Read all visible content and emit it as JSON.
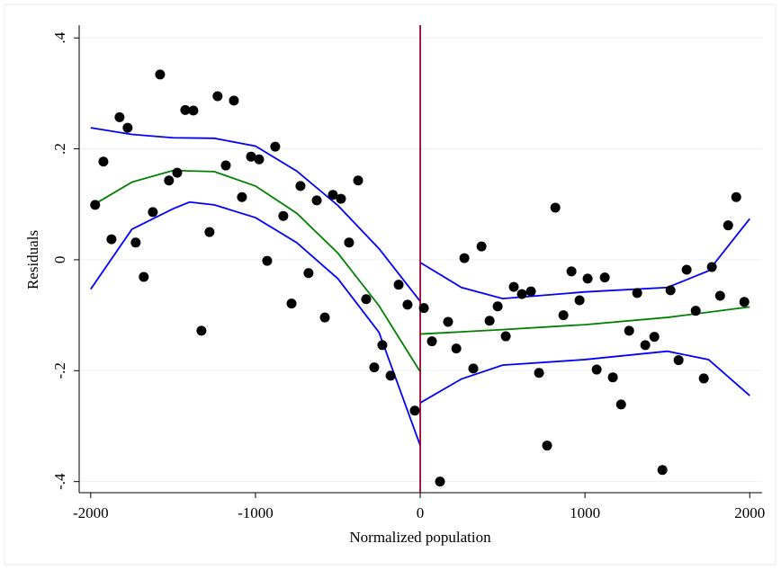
{
  "chart_data": {
    "type": "scatter",
    "xlabel": "Normalized population",
    "ylabel": "Residuals",
    "xlim": [
      -2070,
      2075
    ],
    "ylim": [
      -0.42,
      0.423
    ],
    "xticks": [
      -2000,
      -1000,
      0,
      1000,
      2000
    ],
    "yticks": [
      {
        "value": 0.4,
        "label": ".4"
      },
      {
        "value": 0.2,
        "label": ".2"
      },
      0,
      {
        "value": -0.2,
        "label": "-.2"
      },
      {
        "value": -0.4,
        "label": "-.4"
      }
    ],
    "grid": true,
    "vline": {
      "value": 0,
      "color": "#990033"
    },
    "series": [
      {
        "type": "scatter",
        "color": "#000000",
        "x": [
          -1973,
          -1923,
          -1874,
          -1825,
          -1776,
          -1727,
          -1678,
          -1623,
          -1579,
          -1525,
          -1475,
          -1426,
          -1377,
          -1328,
          -1279,
          -1230,
          -1180,
          -1131,
          -1082,
          -1027,
          -978,
          -929,
          -880,
          -831,
          -781,
          -727,
          -678,
          -628,
          -579,
          -530,
          -481,
          -432,
          -377,
          -328,
          -279,
          -230,
          -180,
          -131,
          -77,
          -33,
          22,
          71,
          120,
          169,
          219,
          268,
          322,
          372,
          421,
          470,
          519,
          568,
          617,
          672,
          721,
          770,
          820,
          869,
          918,
          967,
          1016,
          1071,
          1120,
          1169,
          1219,
          1268,
          1317,
          1366,
          1421,
          1470,
          1519,
          1568,
          1617,
          1672,
          1721,
          1770,
          1820,
          1869,
          1918,
          1967
        ],
        "values": [
          0.099,
          0.177,
          0.037,
          0.257,
          0.238,
          0.031,
          -0.031,
          0.086,
          0.334,
          0.143,
          0.157,
          0.27,
          0.269,
          -0.128,
          0.05,
          0.295,
          0.17,
          0.287,
          0.113,
          0.186,
          0.181,
          -0.002,
          0.204,
          0.079,
          -0.079,
          0.133,
          -0.024,
          0.107,
          -0.104,
          0.117,
          0.11,
          0.031,
          0.143,
          -0.071,
          -0.194,
          -0.154,
          -0.209,
          -0.045,
          -0.081,
          -0.272,
          -0.087,
          -0.147,
          -0.4,
          -0.112,
          -0.16,
          0.003,
          -0.196,
          0.024,
          -0.11,
          -0.084,
          -0.138,
          -0.049,
          -0.062,
          -0.057,
          -0.204,
          -0.335,
          0.094,
          -0.1,
          -0.021,
          -0.073,
          -0.034,
          -0.198,
          -0.032,
          -0.212,
          -0.261,
          -0.128,
          -0.06,
          -0.154,
          -0.139,
          -0.379,
          -0.055,
          -0.181,
          -0.018,
          -0.092,
          -0.214,
          -0.013,
          -0.065,
          0.062,
          0.113,
          -0.076
        ]
      },
      {
        "type": "line",
        "color": "#0000ff",
        "x": [
          -2000,
          -1750,
          -1500,
          -1250,
          -1000,
          -750,
          -500,
          -250,
          0
        ],
        "values": [
          0.238,
          0.226,
          0.22,
          0.219,
          0.205,
          0.16,
          0.098,
          0.02,
          -0.075
        ]
      },
      {
        "type": "line",
        "color": "#0000ff",
        "x": [
          -2000,
          -1750,
          -1500,
          -1400,
          -1250,
          -1000,
          -750,
          -500,
          -250,
          0
        ],
        "values": [
          -0.053,
          0.055,
          0.092,
          0.104,
          0.099,
          0.076,
          0.031,
          -0.034,
          -0.131,
          -0.335
        ]
      },
      {
        "type": "line",
        "color": "#008000",
        "x": [
          -2000,
          -1750,
          -1500,
          -1250,
          -1000,
          -750,
          -500,
          -250,
          0
        ],
        "values": [
          0.096,
          0.14,
          0.161,
          0.159,
          0.133,
          0.084,
          0.012,
          -0.083,
          -0.202
        ]
      },
      {
        "type": "line",
        "color": "#0000ff",
        "x": [
          0,
          250,
          500,
          1000,
          1500,
          1750,
          2000
        ],
        "values": [
          -0.005,
          -0.05,
          -0.07,
          -0.058,
          -0.05,
          -0.02,
          0.074
        ]
      },
      {
        "type": "line",
        "color": "#0000ff",
        "x": [
          0,
          250,
          500,
          1000,
          1500,
          1750,
          2000
        ],
        "values": [
          -0.258,
          -0.215,
          -0.19,
          -0.18,
          -0.165,
          -0.18,
          -0.245
        ]
      },
      {
        "type": "line",
        "color": "#008000",
        "x": [
          0,
          500,
          1000,
          1500,
          2000
        ],
        "values": [
          -0.134,
          -0.126,
          -0.117,
          -0.104,
          -0.085
        ]
      }
    ]
  }
}
